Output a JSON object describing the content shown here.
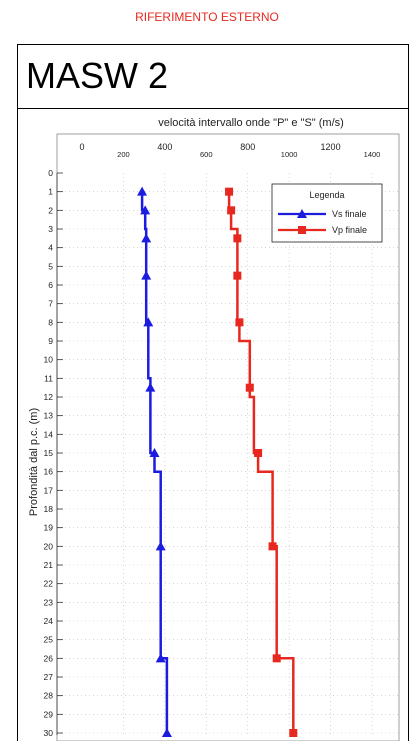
{
  "header": {
    "label": "RIFERIMENTO ESTERNO"
  },
  "title": "MASW 2",
  "chart_data": {
    "type": "line",
    "title": "velocità intervallo onde \"P\" e \"S\" (m/s)",
    "xlabel": "velocità intervallo onde \"P\" e \"S\" (m/s)",
    "ylabel": "Profondità dal p.c. (m)",
    "x_ticks": [
      0,
      200,
      400,
      600,
      800,
      1000,
      1200,
      1400
    ],
    "y_ticks": [
      0,
      1,
      2,
      3,
      4,
      5,
      6,
      7,
      8,
      9,
      10,
      11,
      12,
      13,
      14,
      15,
      16,
      17,
      18,
      19,
      20,
      21,
      22,
      23,
      24,
      25,
      26,
      27,
      28,
      29,
      30
    ],
    "xlim": [
      0,
      1400
    ],
    "ylim": [
      0,
      30
    ],
    "y_inverted": true,
    "grid": true,
    "legend": {
      "title": "Legenda",
      "placement": "top-right"
    },
    "series": [
      {
        "name": "Vs finale",
        "color": "#1c1ce0",
        "marker": "triangle",
        "step_points": [
          [
            290,
            1
          ],
          [
            290,
            2
          ],
          [
            305,
            2
          ],
          [
            305,
            3
          ],
          [
            310,
            3
          ],
          [
            310,
            4
          ],
          [
            310,
            5
          ],
          [
            310,
            6
          ],
          [
            310,
            7
          ],
          [
            310,
            8
          ],
          [
            320,
            8
          ],
          [
            320,
            9
          ],
          [
            320,
            10
          ],
          [
            320,
            11
          ],
          [
            330,
            11
          ],
          [
            330,
            12
          ],
          [
            330,
            13
          ],
          [
            330,
            14
          ],
          [
            330,
            15
          ],
          [
            350,
            15
          ],
          [
            350,
            16
          ],
          [
            380,
            16
          ],
          [
            380,
            20
          ],
          [
            380,
            26
          ],
          [
            410,
            26
          ],
          [
            410,
            30
          ]
        ],
        "markers": [
          [
            290,
            1
          ],
          [
            305,
            2
          ],
          [
            310,
            3.5
          ],
          [
            310,
            5.5
          ],
          [
            320,
            8
          ],
          [
            330,
            11.5
          ],
          [
            350,
            15
          ],
          [
            380,
            20
          ],
          [
            380,
            26
          ],
          [
            410,
            30
          ]
        ]
      },
      {
        "name": "Vp finale",
        "color": "#e8281e",
        "marker": "square",
        "step_points": [
          [
            710,
            1
          ],
          [
            710,
            2
          ],
          [
            720,
            2
          ],
          [
            720,
            3
          ],
          [
            750,
            3
          ],
          [
            750,
            8
          ],
          [
            760,
            8
          ],
          [
            760,
            9
          ],
          [
            810,
            9
          ],
          [
            810,
            11
          ],
          [
            810,
            12
          ],
          [
            830,
            12
          ],
          [
            830,
            15
          ],
          [
            850,
            15
          ],
          [
            850,
            16
          ],
          [
            920,
            16
          ],
          [
            920,
            20
          ],
          [
            940,
            20
          ],
          [
            940,
            26
          ],
          [
            1020,
            26
          ],
          [
            1020,
            30
          ]
        ],
        "markers": [
          [
            710,
            1
          ],
          [
            720,
            2
          ],
          [
            750,
            3.5
          ],
          [
            750,
            5.5
          ],
          [
            760,
            8
          ],
          [
            810,
            11.5
          ],
          [
            850,
            15
          ],
          [
            920,
            20
          ],
          [
            940,
            26
          ],
          [
            1020,
            30
          ]
        ]
      }
    ]
  }
}
